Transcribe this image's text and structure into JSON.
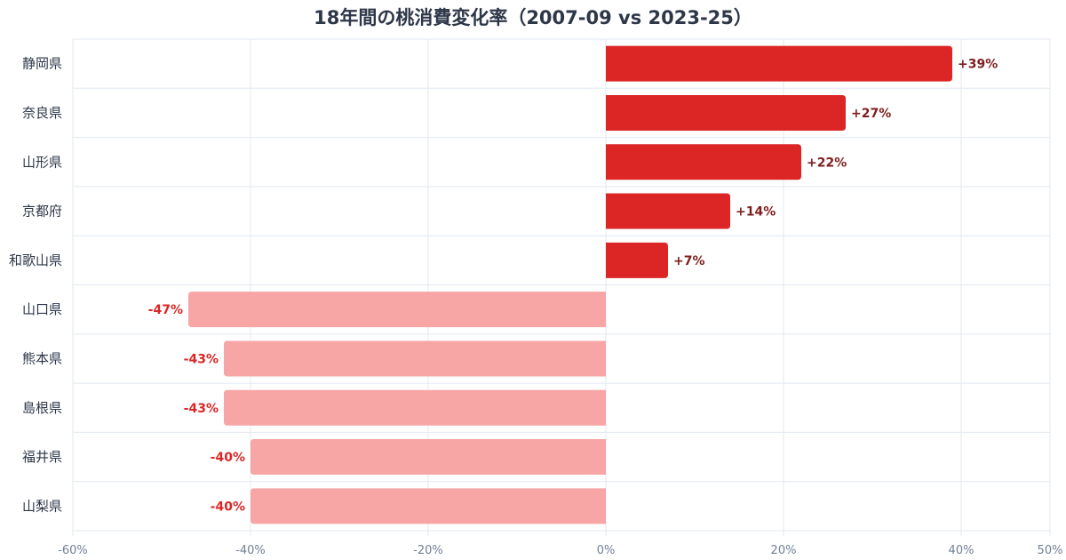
{
  "chart_data": {
    "type": "bar",
    "orientation": "horizontal",
    "title": "18年間の桃消費変化率（2007-09 vs 2023-25）",
    "categories": [
      "静岡県",
      "奈良県",
      "山形県",
      "京都府",
      "和歌山県",
      "山口県",
      "熊本県",
      "島根県",
      "福井県",
      "山梨県"
    ],
    "values": [
      39,
      27,
      22,
      14,
      7,
      -47,
      -43,
      -43,
      -40,
      -40
    ],
    "value_labels": [
      "+39%",
      "+27%",
      "+22%",
      "+14%",
      "+7%",
      "-47%",
      "-43%",
      "-43%",
      "-40%",
      "-40%"
    ],
    "xlim": [
      -60,
      50
    ],
    "x_ticks": [
      -60,
      -40,
      -20,
      0,
      20,
      40,
      50
    ],
    "x_tick_labels": [
      "-60%",
      "-40%",
      "-20%",
      "0%",
      "20%",
      "40%",
      "50%"
    ],
    "grid": true,
    "colors": {
      "positive_bar": "#dc2626",
      "negative_bar": "#f8a5a5",
      "positive_label": "#7f1d1d",
      "negative_label": "#dc2626",
      "grid": "#e2e8f0"
    }
  }
}
